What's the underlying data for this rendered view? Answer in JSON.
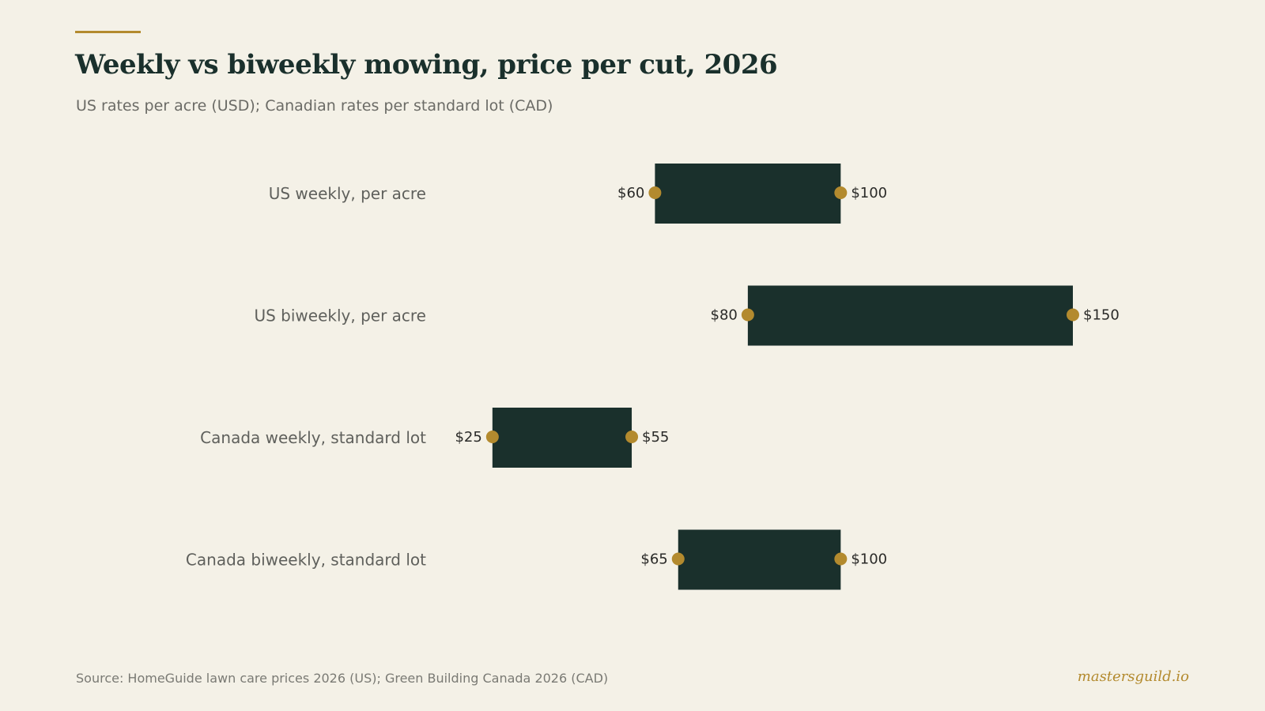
{
  "header": {
    "title": "Weekly vs biweekly mowing, price per cut, 2026",
    "subtitle": "US rates per acre (USD); Canadian rates per standard lot (CAD)"
  },
  "footer": {
    "source": "Source: HomeGuide lawn care prices 2026 (US); Green Building Canada 2026 (CAD)",
    "brand": "mastersguild.io"
  },
  "colors": {
    "background": "#f4f1e7",
    "bar": "#1a302c",
    "accent": "#b38a2e",
    "title": "#1a302c"
  },
  "chart_data": {
    "type": "bar",
    "subtype": "floating-range",
    "orientation": "horizontal",
    "title": "Weekly vs biweekly mowing, price per cut, 2026",
    "subtitle": "US rates per acre (USD); Canadian rates per standard lot (CAD)",
    "categories": [
      "US weekly, per acre",
      "US biweekly, per acre",
      "Canada weekly, standard lot",
      "Canada biweekly, standard lot"
    ],
    "series": [
      {
        "low": [
          60,
          80,
          25,
          65
        ],
        "high": [
          100,
          150,
          55,
          100
        ],
        "low_labels": [
          "$60",
          "$80",
          "$25",
          "$65"
        ],
        "high_labels": [
          "$100",
          "$150",
          "$55",
          "$100"
        ]
      }
    ],
    "xlim": [
      0,
      150
    ],
    "grid": false,
    "legend": "none"
  }
}
